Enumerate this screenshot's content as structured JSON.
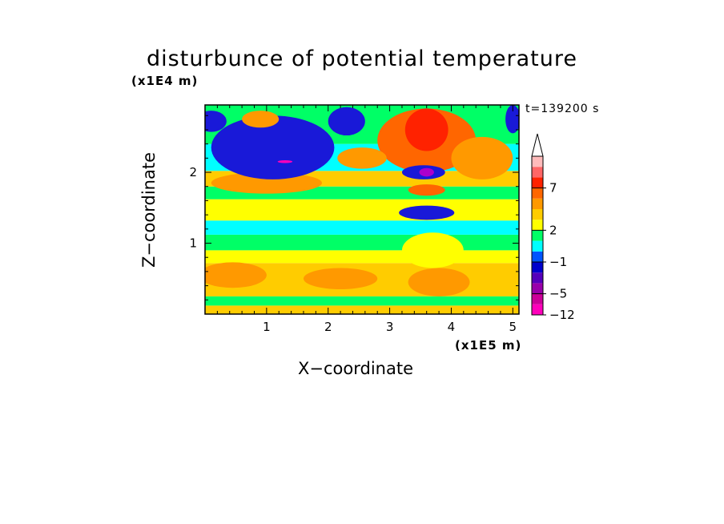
{
  "chart_data": {
    "type": "heatmap",
    "title": "disturbunce of potential temperature",
    "xlabel": "X−coordinate",
    "ylabel": "Z−coordinate",
    "x_unit": "(x1E5 m)",
    "z_unit": "(x1E4 m)",
    "time_label": "t=139200 s",
    "xlim": [
      0,
      5.1
    ],
    "ylim": [
      0,
      2.95
    ],
    "x_ticks": [
      "1",
      "2",
      "3",
      "4",
      "5"
    ],
    "y_ticks": [
      "1",
      "2"
    ],
    "colorbar": {
      "tick_labels": [
        "7",
        "2",
        "−1",
        "−5",
        "−12"
      ],
      "colors": [
        "#ff00bb",
        "#cc0099",
        "#9900aa",
        "#5500bb",
        "#0000cc",
        "#0055ff",
        "#00ffff",
        "#00ff66",
        "#ffff00",
        "#ffcc00",
        "#ff9900",
        "#ff6600",
        "#ff2200",
        "#ff6666",
        "#ffbbbb"
      ],
      "extend": "max"
    },
    "palette": {
      "deep_blue": "#1919d8",
      "blue": "#0066ff",
      "cyan": "#00ffff",
      "green": "#00ff66",
      "yellow": "#ffff00",
      "gold": "#ffcc00",
      "orange": "#ff9900",
      "dark_orange": "#ff6600",
      "red": "#ff2200",
      "purple": "#aa00cc",
      "magenta": "#ff00bb"
    }
  }
}
